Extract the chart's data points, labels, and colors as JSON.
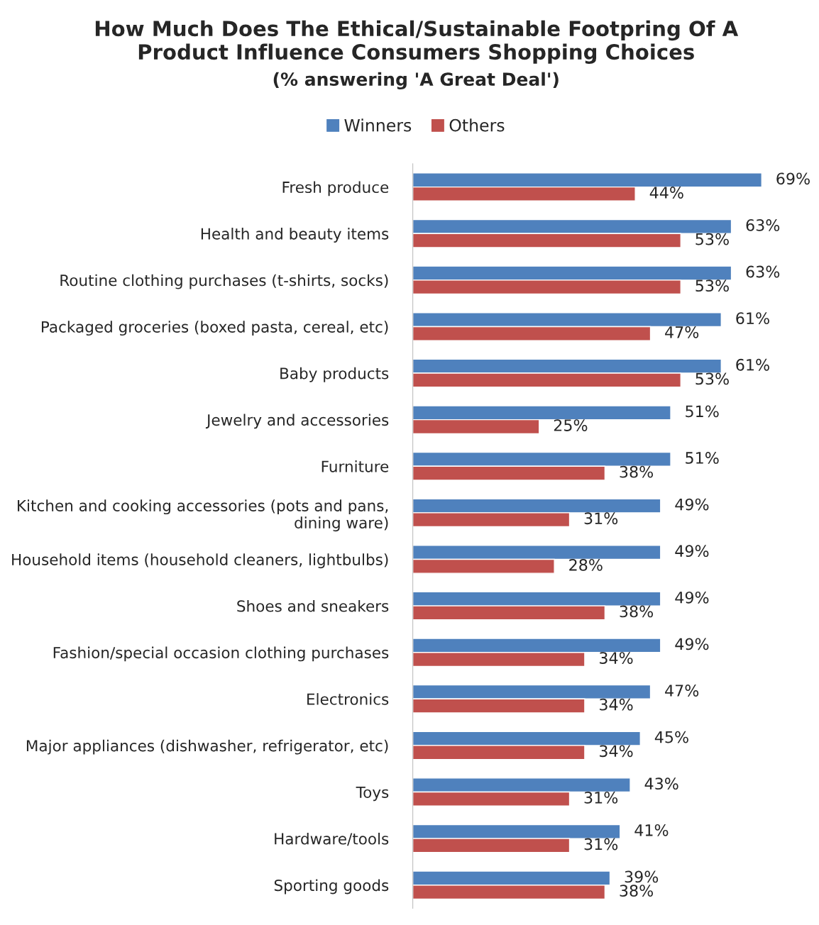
{
  "chart_data": {
    "type": "bar",
    "orientation": "horizontal",
    "title": "How Much Does The Ethical/Sustainable Footpring Of A\nProduct Influence Consumers Shopping Choices",
    "subtitle": "(% answering 'A Great Deal')",
    "categories": [
      "Fresh produce",
      "Health and beauty items",
      "Routine clothing purchases (t-shirts, socks)",
      "Packaged groceries (boxed pasta, cereal, etc)",
      "Baby products",
      "Jewelry and accessories",
      "Furniture",
      "Kitchen and cooking accessories (pots and pans,\ndining ware)",
      "Household items (household cleaners, lightbulbs)",
      "Shoes and sneakers",
      "Fashion/special occasion clothing purchases",
      "Electronics",
      "Major appliances (dishwasher, refrigerator, etc)",
      "Toys",
      "Hardware/tools",
      "Sporting goods"
    ],
    "series": [
      {
        "name": "Winners",
        "color": "#4f81bd",
        "values": [
          69,
          63,
          63,
          61,
          61,
          51,
          51,
          49,
          49,
          49,
          49,
          47,
          45,
          43,
          41,
          39
        ],
        "value_labels": [
          "69%",
          "63%",
          "63%",
          "61%",
          "61%",
          "51%",
          "51%",
          "49%",
          "49%",
          "49%",
          "49%",
          "47%",
          "45%",
          "43%",
          "41%",
          "39%"
        ]
      },
      {
        "name": "Others",
        "color": "#c0504d",
        "values": [
          44,
          53,
          53,
          47,
          53,
          25,
          38,
          31,
          28,
          38,
          34,
          34,
          34,
          31,
          31,
          38
        ],
        "value_labels": [
          "44%",
          "53%",
          "53%",
          "47%",
          "53%",
          "25%",
          "38%",
          "31%",
          "28%",
          "38%",
          "34%",
          "34%",
          "34%",
          "31%",
          "31%",
          "38%"
        ]
      }
    ],
    "legend": "top",
    "grid": false
  }
}
